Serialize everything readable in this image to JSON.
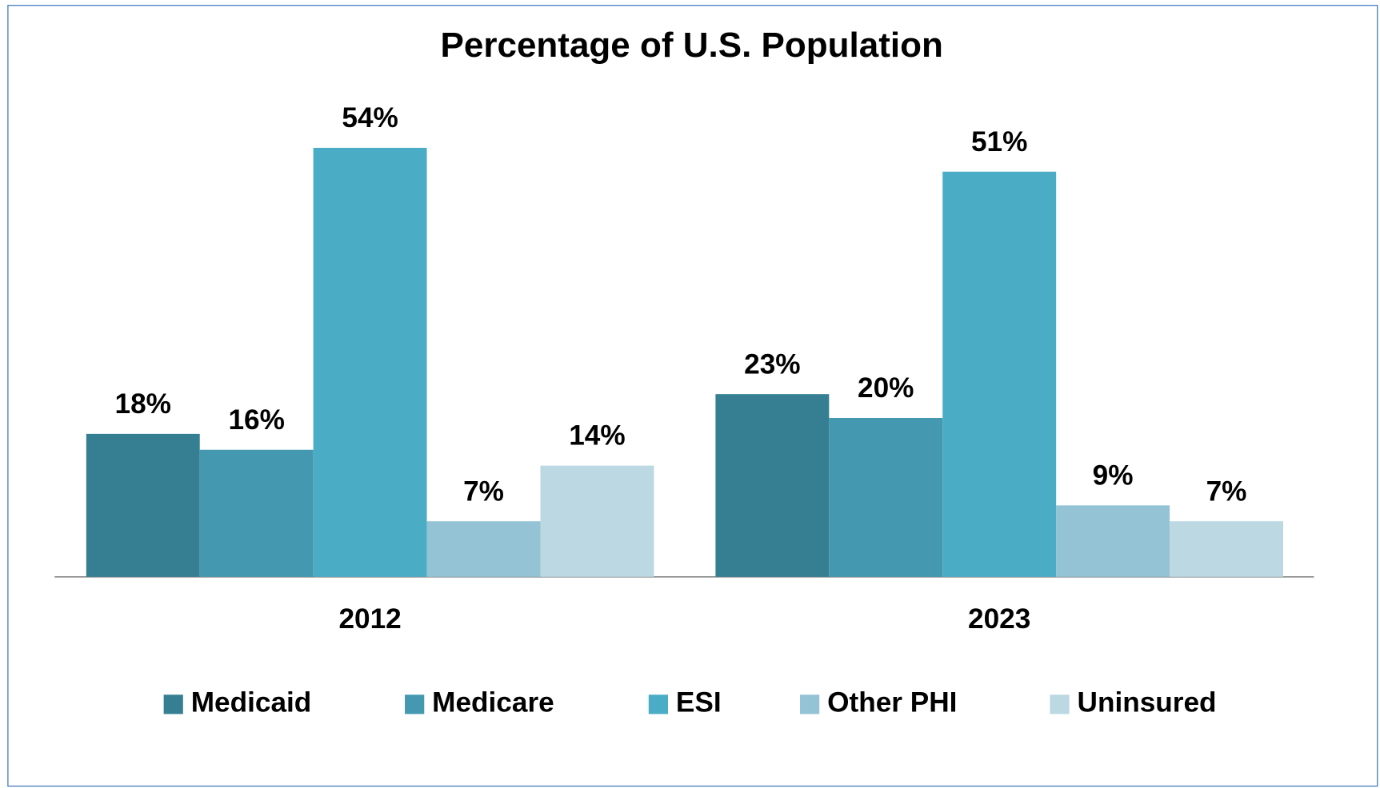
{
  "chart_data": {
    "type": "bar",
    "title": "Percentage of U.S. Population",
    "categories": [
      "2012",
      "2023"
    ],
    "series": [
      {
        "name": "Medicaid",
        "color": "#367f93",
        "values": [
          18,
          23
        ],
        "value_labels": [
          "18%",
          "23%"
        ]
      },
      {
        "name": "Medicare",
        "color": "#4499b0",
        "values": [
          16,
          20
        ],
        "value_labels": [
          "16%",
          "20%"
        ]
      },
      {
        "name": "ESI",
        "color": "#4bacc6",
        "values": [
          54,
          51
        ],
        "value_labels": [
          "54%",
          "51%"
        ]
      },
      {
        "name": "Other PHI",
        "color": "#93c3d5",
        "values": [
          7,
          9
        ],
        "value_labels": [
          "7%",
          "9%"
        ]
      },
      {
        "name": "Uninsured",
        "color": "#bcd8e3",
        "values": [
          14,
          7
        ],
        "value_labels": [
          "14%",
          "7%"
        ]
      }
    ]
  }
}
